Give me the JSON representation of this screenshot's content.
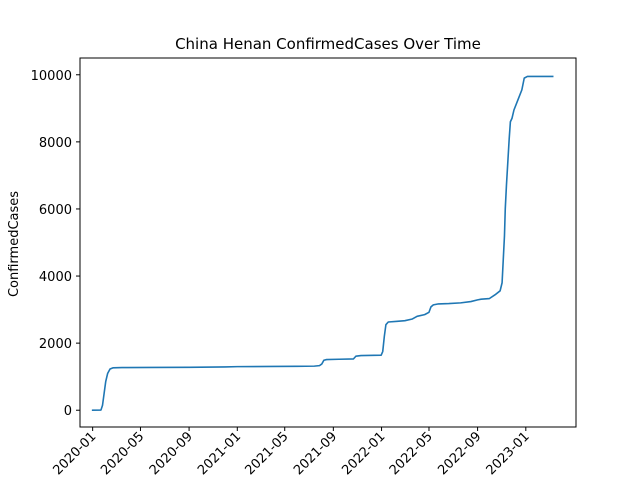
{
  "chart_data": {
    "type": "line",
    "title": "China Henan ConfirmedCases Over Time",
    "xlabel": "",
    "ylabel": "ConfirmedCases",
    "grid": false,
    "legend": null,
    "x_ticks": [
      "2020-01",
      "2020-05",
      "2020-09",
      "2021-01",
      "2021-05",
      "2021-09",
      "2022-01",
      "2022-05",
      "2022-09",
      "2023-01"
    ],
    "y_ticks": [
      0,
      2000,
      4000,
      6000,
      8000,
      10000
    ],
    "xlim": [
      "2019-11-30",
      "2023-05-08"
    ],
    "ylim": [
      -500,
      10500
    ],
    "series": [
      {
        "color": "#1f77b4",
        "points": [
          [
            "2020-01-01",
            0
          ],
          [
            "2020-01-22",
            5
          ],
          [
            "2020-01-26",
            150
          ],
          [
            "2020-01-30",
            500
          ],
          [
            "2020-02-03",
            850
          ],
          [
            "2020-02-08",
            1100
          ],
          [
            "2020-02-14",
            1230
          ],
          [
            "2020-02-22",
            1265
          ],
          [
            "2020-03-15",
            1272
          ],
          [
            "2020-06-01",
            1275
          ],
          [
            "2020-09-01",
            1280
          ],
          [
            "2020-12-01",
            1290
          ],
          [
            "2021-01-01",
            1300
          ],
          [
            "2021-04-01",
            1305
          ],
          [
            "2021-06-01",
            1310
          ],
          [
            "2021-07-15",
            1315
          ],
          [
            "2021-07-28",
            1330
          ],
          [
            "2021-08-03",
            1380
          ],
          [
            "2021-08-08",
            1490
          ],
          [
            "2021-08-15",
            1510
          ],
          [
            "2021-09-15",
            1520
          ],
          [
            "2021-10-22",
            1530
          ],
          [
            "2021-10-28",
            1610
          ],
          [
            "2021-11-10",
            1630
          ],
          [
            "2021-12-31",
            1640
          ],
          [
            "2022-01-04",
            1750
          ],
          [
            "2022-01-08",
            2200
          ],
          [
            "2022-01-12",
            2550
          ],
          [
            "2022-01-18",
            2630
          ],
          [
            "2022-02-10",
            2650
          ],
          [
            "2022-03-01",
            2670
          ],
          [
            "2022-03-20",
            2720
          ],
          [
            "2022-04-01",
            2800
          ],
          [
            "2022-04-20",
            2850
          ],
          [
            "2022-05-01",
            2920
          ],
          [
            "2022-05-06",
            3080
          ],
          [
            "2022-05-12",
            3140
          ],
          [
            "2022-05-25",
            3170
          ],
          [
            "2022-06-20",
            3180
          ],
          [
            "2022-07-20",
            3200
          ],
          [
            "2022-08-15",
            3240
          ],
          [
            "2022-09-01",
            3290
          ],
          [
            "2022-09-10",
            3310
          ],
          [
            "2022-10-01",
            3330
          ],
          [
            "2022-10-15",
            3440
          ],
          [
            "2022-10-28",
            3560
          ],
          [
            "2022-11-02",
            3800
          ],
          [
            "2022-11-05",
            4500
          ],
          [
            "2022-11-08",
            5200
          ],
          [
            "2022-11-10",
            6000
          ],
          [
            "2022-11-13",
            6700
          ],
          [
            "2022-11-17",
            7500
          ],
          [
            "2022-11-20",
            8100
          ],
          [
            "2022-11-23",
            8600
          ],
          [
            "2022-11-27",
            8700
          ],
          [
            "2022-12-02",
            8950
          ],
          [
            "2022-12-12",
            9250
          ],
          [
            "2022-12-22",
            9550
          ],
          [
            "2022-12-28",
            9900
          ],
          [
            "2023-01-05",
            9950
          ],
          [
            "2023-03-10",
            9950
          ]
        ]
      }
    ]
  }
}
